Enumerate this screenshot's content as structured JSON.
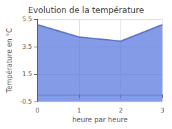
{
  "chart_data": {
    "type": "area",
    "title": "Evolution de la température",
    "xlabel": "heure par heure",
    "ylabel": "Température en °C",
    "x": [
      0,
      1,
      2,
      3
    ],
    "values": [
      5.1,
      4.2,
      3.9,
      5.1
    ],
    "xlim": [
      0,
      3
    ],
    "xticks": [
      0,
      1,
      2,
      3
    ],
    "ylim": [
      -0.5,
      5.5
    ],
    "yticks": [
      -0.5,
      1.5,
      3.5,
      5.5
    ],
    "grid": true
  }
}
